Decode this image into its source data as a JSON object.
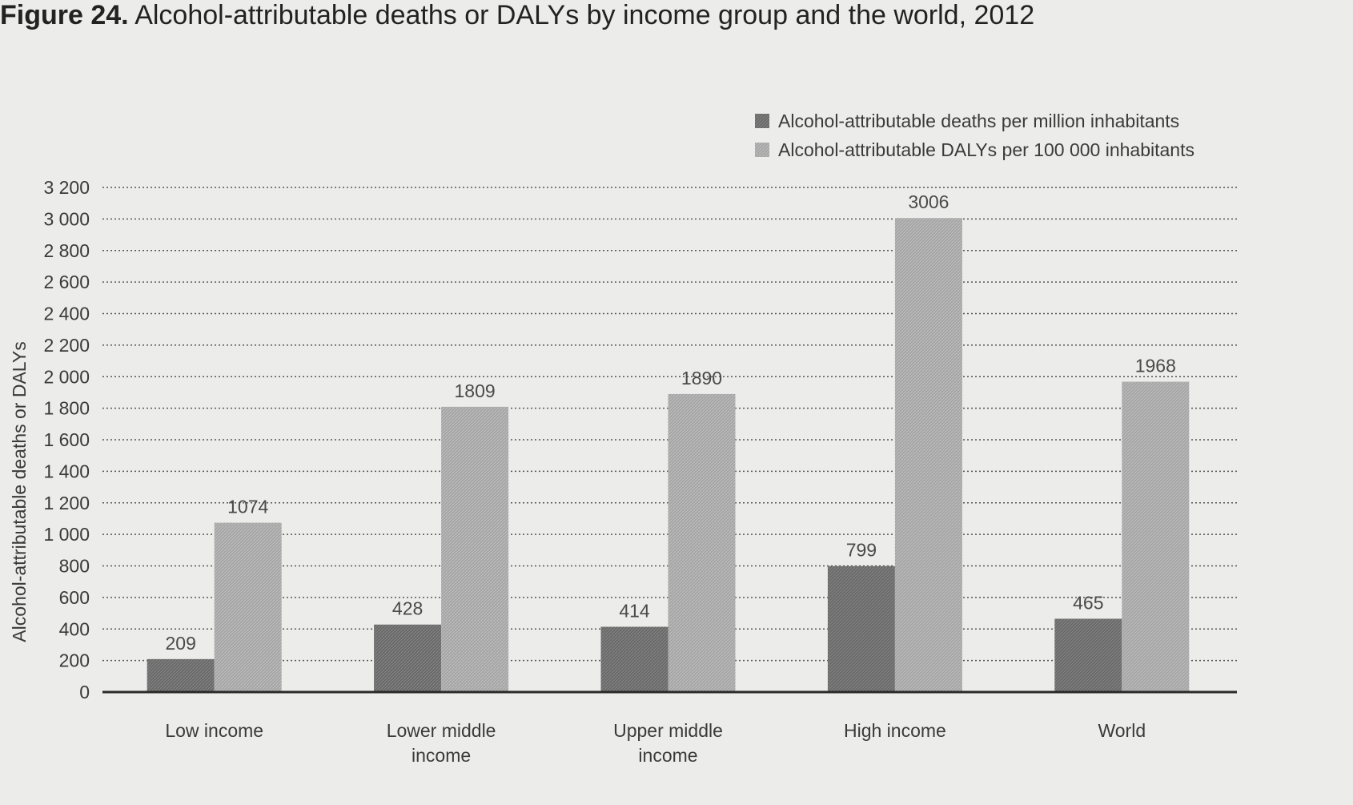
{
  "figure": {
    "number": "Figure 24.",
    "title": "Alcohol-attributable deaths or DALYs by income group and the world, 2012"
  },
  "chart_data": {
    "type": "bar",
    "title": "Alcohol-attributable deaths or DALYs by income group and the world, 2012",
    "xlabel": "",
    "ylabel": "Alcohol-attributable deaths or DALYs",
    "ylim": [
      0,
      3200
    ],
    "yticks": [
      0,
      200,
      400,
      600,
      800,
      1000,
      1200,
      1400,
      1600,
      1800,
      2000,
      2200,
      2400,
      2600,
      2800,
      3000,
      3200
    ],
    "ytick_labels": [
      "0",
      "200",
      "400",
      "600",
      "800",
      "1 000",
      "1 200",
      "1 400",
      "1 600",
      "1 800",
      "2 000",
      "2 200",
      "2 400",
      "2 600",
      "2 800",
      "3 000",
      "3 200"
    ],
    "categories": [
      [
        "Low income"
      ],
      [
        "Lower middle",
        "income"
      ],
      [
        "Upper middle",
        "income"
      ],
      [
        "High income"
      ],
      [
        "World"
      ]
    ],
    "series": [
      {
        "name": "Alcohol-attributable deaths per million inhabitants",
        "values": [
          209,
          428,
          414,
          799,
          465
        ],
        "color": "#6e6e6e"
      },
      {
        "name": "Alcohol-attributable DALYs per 100 000 inhabitants",
        "values": [
          1074,
          1809,
          1890,
          3006,
          1968
        ],
        "color": "#a3a3a3"
      }
    ],
    "grid": true,
    "grid_style": "dotted",
    "legend_position": "top-right",
    "data_labels": true
  }
}
